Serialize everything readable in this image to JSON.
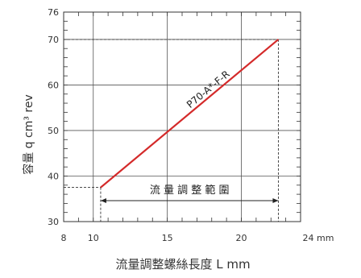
{
  "chart_data": {
    "type": "line",
    "xlabel": "流量調整螺絲長度 L mm",
    "ylabel": "容量 q cm³ rev",
    "x_ticks": [
      "8",
      "10",
      "15",
      "20",
      "24 mm"
    ],
    "y_ticks": [
      "30",
      "40",
      "50",
      "60",
      "70",
      "76"
    ],
    "xlim": [
      8,
      24
    ],
    "ylim": [
      30,
      76
    ],
    "grid": true,
    "series": [
      {
        "name": "P70-A*-F-R",
        "x": [
          10.5,
          22.5
        ],
        "y": [
          37.5,
          70
        ],
        "color": "#d42a2a"
      }
    ],
    "annotations": {
      "range_label": "流 量 調 整 範 圍",
      "range_x": [
        10.5,
        22.5
      ]
    }
  }
}
